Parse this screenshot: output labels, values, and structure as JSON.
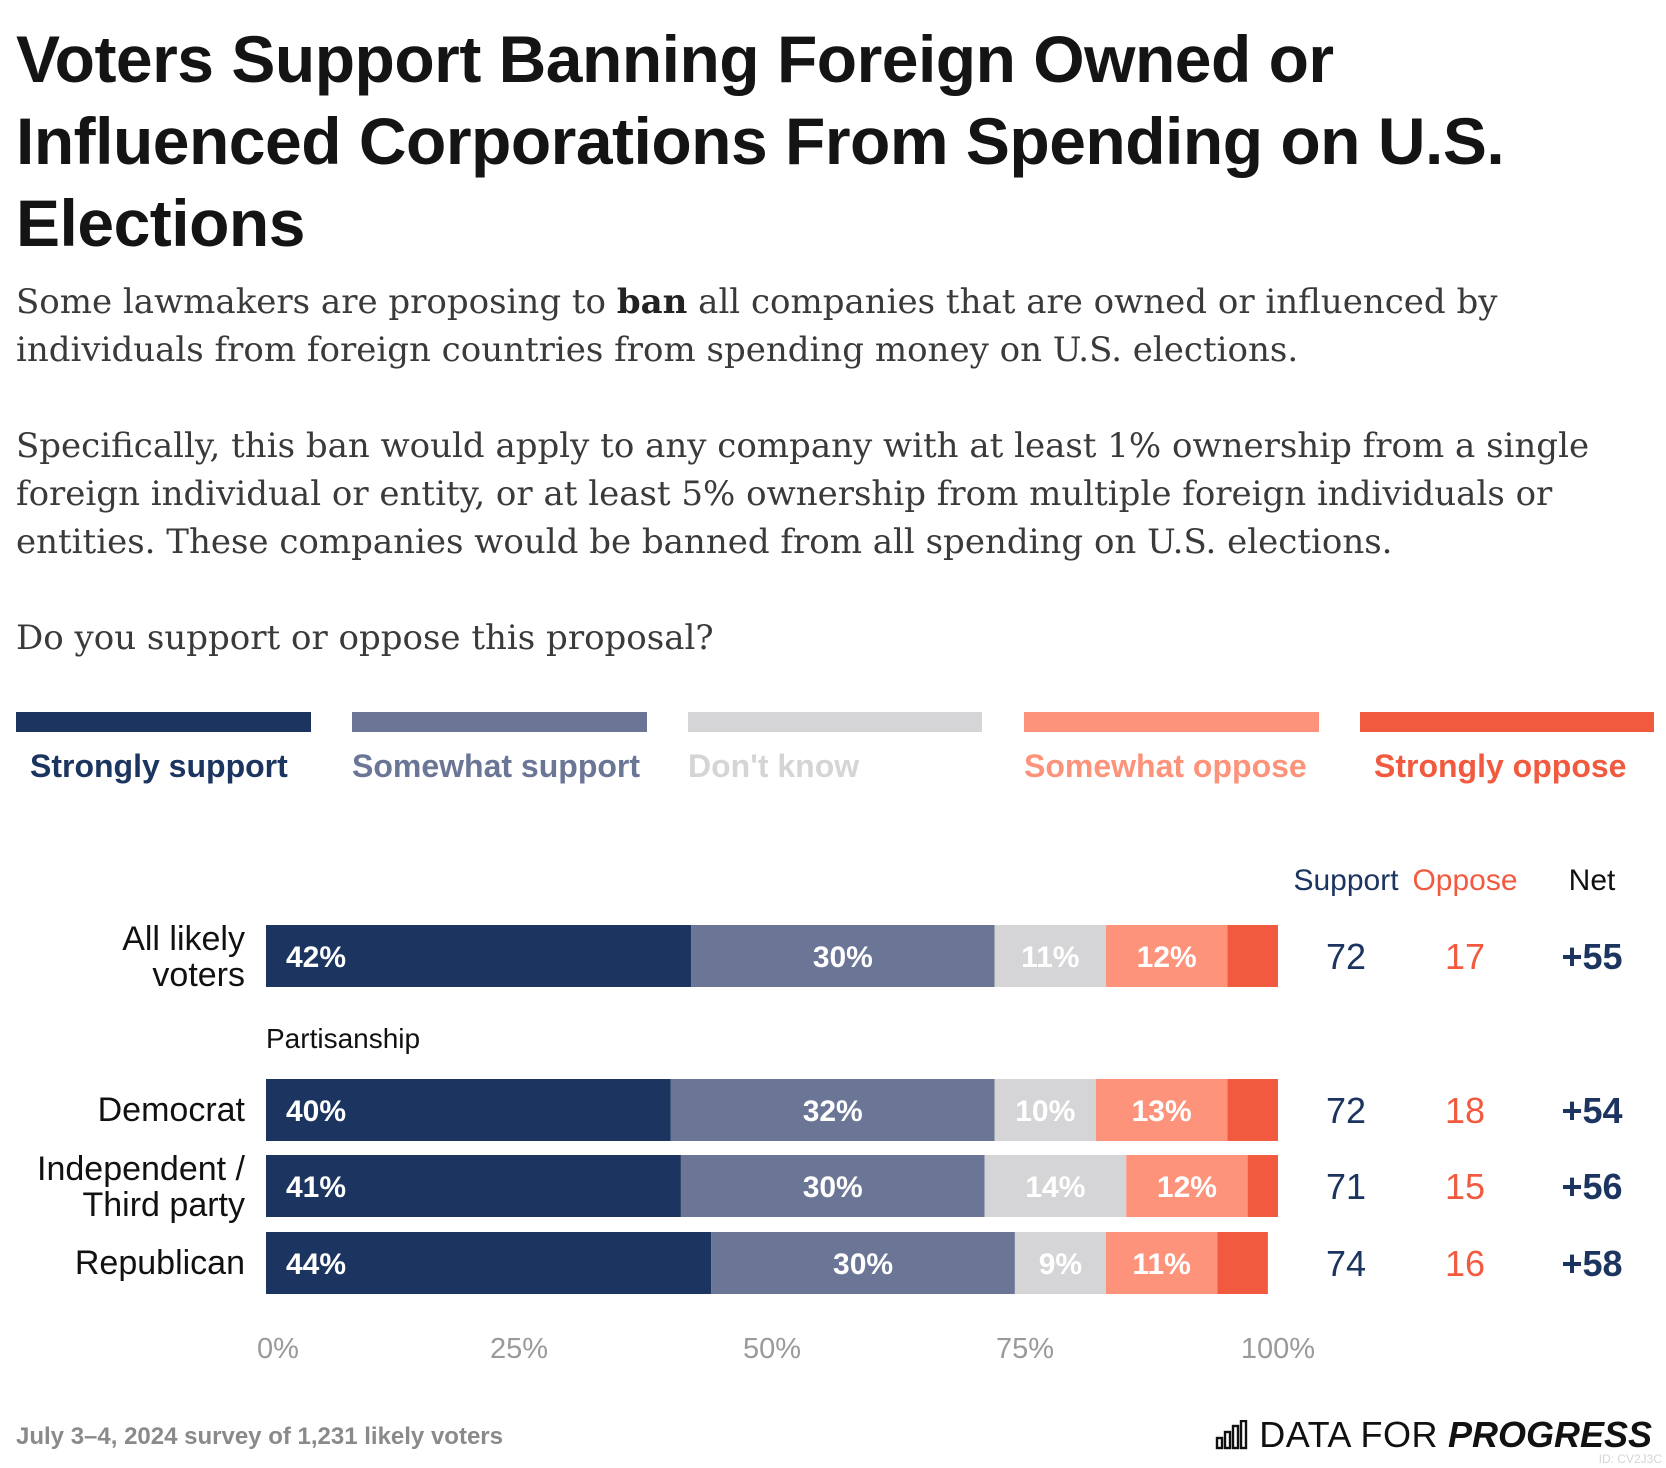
{
  "title": "Voters Support Banning Foreign Owned or Influenced Corporations From Spending on U.S. Elections",
  "intro": {
    "p1_before": "Some lawmakers are proposing to ",
    "p1_bold": "ban",
    "p1_after": " all companies that are owned or influenced by individuals from foreign countries from spending money on U.S. elections.",
    "p2": "Specifically, this ban would apply to any company with at least 1% ownership from a single foreign individual or entity, or at least 5% ownership from multiple foreign individuals or entities. These companies would be banned from all spending on U.S. elections.",
    "question": "Do you support or oppose this proposal?"
  },
  "legend": [
    {
      "label": "Strongly support",
      "color": "#1b3560"
    },
    {
      "label": "Somewhat support",
      "color": "#6b7596"
    },
    {
      "label": "Don't know",
      "color": "#d5d5d7"
    },
    {
      "label": "Somewhat oppose",
      "color": "#fd937b"
    },
    {
      "label": "Strongly oppose",
      "color": "#f15a3f"
    }
  ],
  "columns": {
    "support": "Support",
    "oppose": "Oppose",
    "net": "Net"
  },
  "colors": {
    "support": "#1b3560",
    "oppose": "#f15a3f",
    "net": "#1b3560",
    "dk_label": "#d5d5d7"
  },
  "group_label": "Partisanship",
  "chart_data": {
    "type": "bar",
    "orientation": "horizontal",
    "stacked": true,
    "xlim": [
      0,
      100
    ],
    "xticks": [
      "0%",
      "25%",
      "50%",
      "75%",
      "100%"
    ],
    "categories": [
      "All likely voters",
      "Democrat",
      "Independent / Third party",
      "Republican"
    ],
    "series": [
      {
        "name": "Strongly support",
        "values": [
          42,
          40,
          41,
          44
        ],
        "labels": [
          "42%",
          "40%",
          "41%",
          "44%"
        ]
      },
      {
        "name": "Somewhat support",
        "values": [
          30,
          32,
          30,
          30
        ],
        "labels": [
          "30%",
          "32%",
          "30%",
          "30%"
        ]
      },
      {
        "name": "Don't know",
        "values": [
          11,
          10,
          14,
          9
        ],
        "labels": [
          "11%",
          "10%",
          "14%",
          "9%"
        ]
      },
      {
        "name": "Somewhat oppose",
        "values": [
          12,
          13,
          12,
          11
        ],
        "labels": [
          "12%",
          "13%",
          "12%",
          "11%"
        ]
      },
      {
        "name": "Strongly oppose",
        "values": [
          5,
          5,
          3,
          5
        ],
        "labels": [
          "",
          "",
          "",
          ""
        ]
      }
    ],
    "totals": {
      "support": [
        "72",
        "72",
        "71",
        "74"
      ],
      "oppose": [
        "17",
        "18",
        "15",
        "16"
      ],
      "net": [
        "+55",
        "+54",
        "+56",
        "+58"
      ]
    }
  },
  "footer": {
    "note": "July 3–4, 2024 survey of 1,231 likely voters",
    "brand_a": "DATA FOR",
    "brand_b": "PROGRESS",
    "watermark": "ID: CV2J3C"
  }
}
